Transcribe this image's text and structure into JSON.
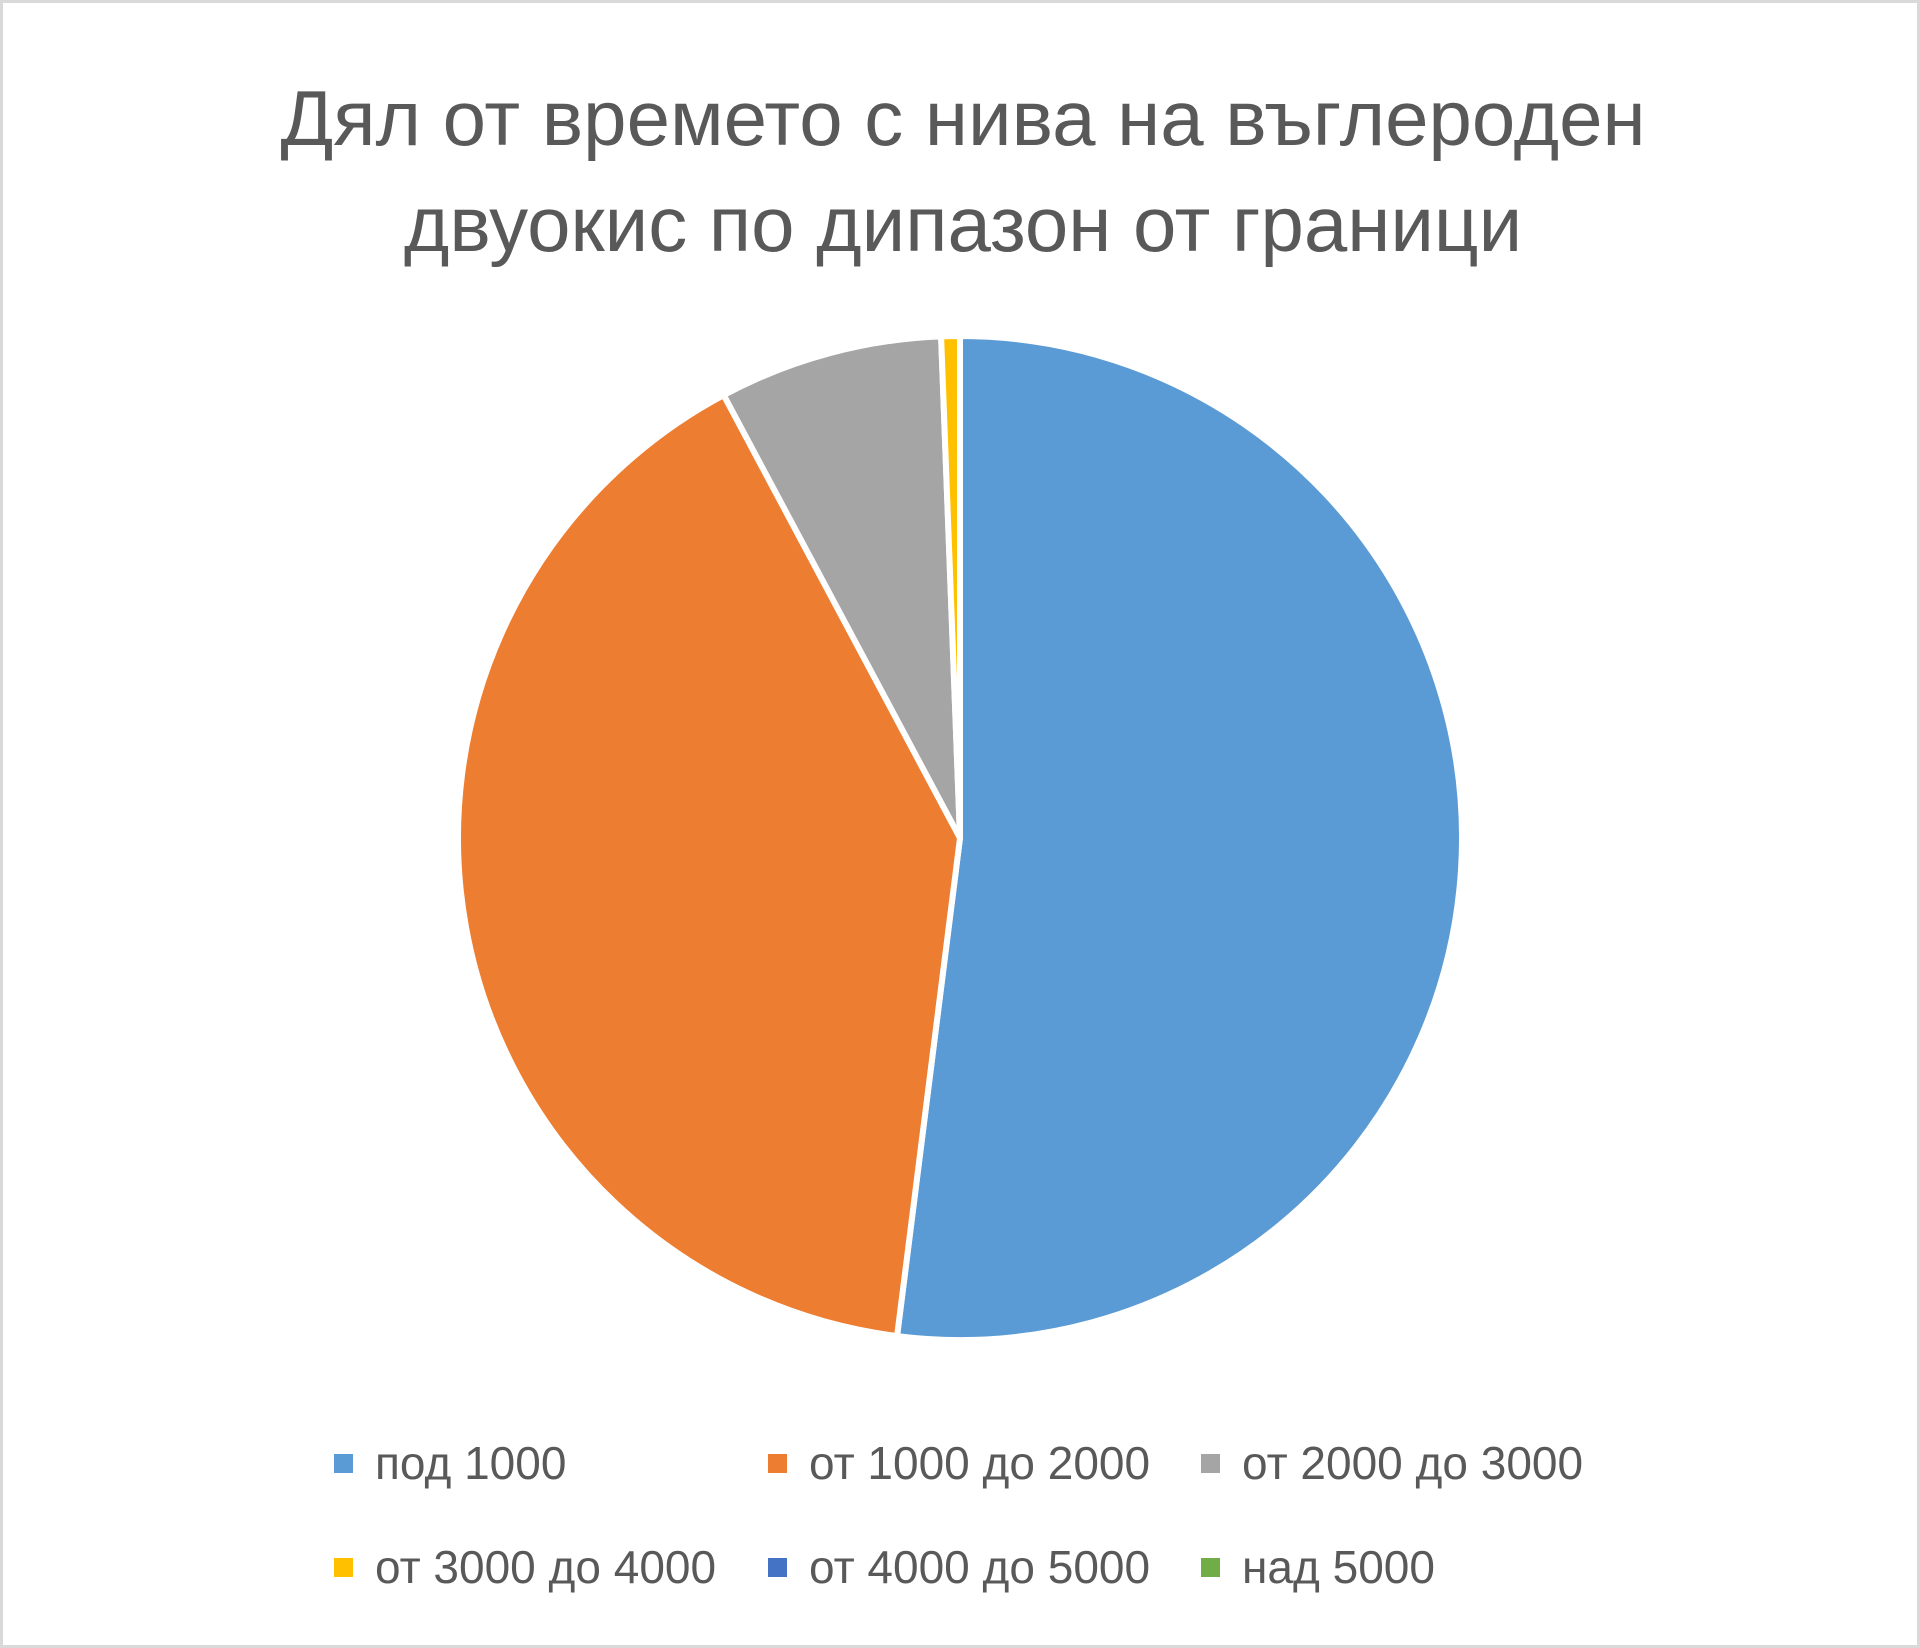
{
  "chart_data": {
    "type": "pie",
    "title": "Дял от времето с нива на въглероден двуокис по дипазон от граници",
    "title_lines": [
      "Дял от времето с нива на въглероден",
      "двуокис по дипазон от граници"
    ],
    "categories": [
      "под 1000",
      "от 1000 до 2000",
      "от 2000 до 3000",
      "от 3000 до 4000",
      "от 4000 до 5000",
      "над 5000"
    ],
    "values": [
      52.0,
      40.2,
      7.2,
      0.6,
      0.0,
      0.0
    ],
    "unit": "%",
    "colors": [
      "#5B9BD5",
      "#ED7D31",
      "#A5A5A5",
      "#FFC000",
      "#4472C4",
      "#70AD47"
    ],
    "start_angle": "12 o'clock",
    "direction": "clockwise",
    "legend_position": "bottom",
    "slice_border_color": "#ffffff"
  }
}
